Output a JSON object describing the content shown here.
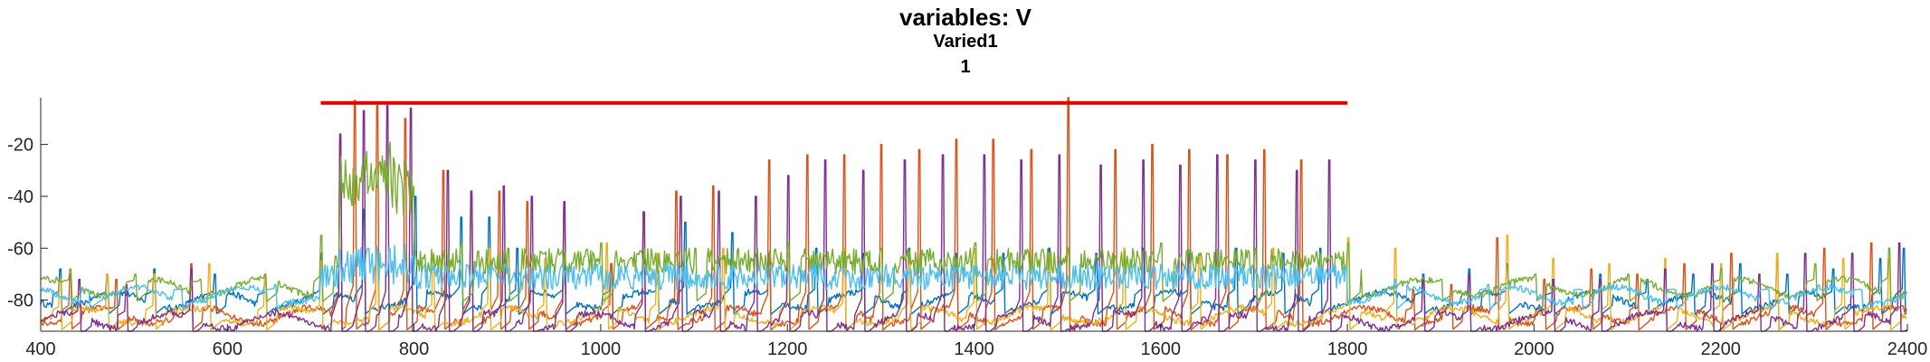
{
  "chart_data": {
    "type": "line",
    "title": "variables: V",
    "subtitle": "Varied1",
    "subtitle2": "1",
    "xlabel": "",
    "ylabel": "",
    "xlim": [
      400,
      2400
    ],
    "ylim": [
      -92,
      -2
    ],
    "xticks": [
      400,
      600,
      800,
      1000,
      1200,
      1400,
      1600,
      1800,
      2000,
      2200,
      2400
    ],
    "yticks": [
      -80,
      -60,
      -40,
      -20
    ],
    "grid": false,
    "legend": "none",
    "stimulus_bar": {
      "x": [
        700,
        1800
      ],
      "y": -4,
      "color": "#e00000"
    },
    "series": [
      {
        "color": "#0072bd",
        "baseline": -80,
        "spikes": [
          [
            420,
            -68
          ],
          [
            470,
            -70
          ],
          [
            520,
            -68
          ],
          [
            585,
            -70
          ],
          [
            640,
            -72
          ],
          [
            700,
            -62
          ],
          [
            745,
            -45
          ],
          [
            800,
            -40
          ],
          [
            850,
            -48
          ],
          [
            880,
            -48
          ],
          [
            910,
            -60
          ],
          [
            960,
            -62
          ],
          [
            1010,
            -66
          ],
          [
            1060,
            -64
          ],
          [
            1090,
            -50
          ],
          [
            1140,
            -54
          ],
          [
            1180,
            -62
          ],
          [
            1230,
            -60
          ],
          [
            1280,
            -62
          ],
          [
            1330,
            -60
          ],
          [
            1380,
            -62
          ],
          [
            1430,
            -62
          ],
          [
            1480,
            -60
          ],
          [
            1530,
            -62
          ],
          [
            1580,
            -60
          ],
          [
            1630,
            -62
          ],
          [
            1680,
            -60
          ],
          [
            1730,
            -62
          ],
          [
            1770,
            -60
          ],
          [
            1880,
            -70
          ],
          [
            1930,
            -68
          ],
          [
            1970,
            -66
          ],
          [
            2020,
            -72
          ],
          [
            2070,
            -70
          ],
          [
            2120,
            -72
          ],
          [
            2170,
            -70
          ],
          [
            2220,
            -66
          ],
          [
            2270,
            -70
          ],
          [
            2320,
            -68
          ],
          [
            2370,
            -64
          ],
          [
            2395,
            -60
          ]
        ]
      },
      {
        "color": "#d95319",
        "baseline": -86,
        "spikes": [
          [
            430,
            -70
          ],
          [
            480,
            -72
          ],
          [
            560,
            -66
          ],
          [
            720,
            -18
          ],
          [
            735,
            -3
          ],
          [
            760,
            -5
          ],
          [
            790,
            -10
          ],
          [
            830,
            -30
          ],
          [
            860,
            -40
          ],
          [
            890,
            -38
          ],
          [
            920,
            -42
          ],
          [
            960,
            -44
          ],
          [
            1010,
            -66
          ],
          [
            1045,
            -46
          ],
          [
            1080,
            -38
          ],
          [
            1120,
            -36
          ],
          [
            1180,
            -26
          ],
          [
            1220,
            -24
          ],
          [
            1260,
            -24
          ],
          [
            1300,
            -20
          ],
          [
            1340,
            -22
          ],
          [
            1380,
            -18
          ],
          [
            1420,
            -18
          ],
          [
            1460,
            -22
          ],
          [
            1500,
            -2
          ],
          [
            1550,
            -22
          ],
          [
            1590,
            -20
          ],
          [
            1630,
            -22
          ],
          [
            1670,
            -24
          ],
          [
            1710,
            -22
          ],
          [
            1750,
            -26
          ],
          [
            1870,
            -76
          ],
          [
            1910,
            -74
          ],
          [
            1960,
            -56
          ],
          [
            2010,
            -72
          ],
          [
            2060,
            -68
          ],
          [
            2110,
            -70
          ],
          [
            2160,
            -66
          ],
          [
            2210,
            -62
          ],
          [
            2260,
            -64
          ],
          [
            2310,
            -60
          ],
          [
            2360,
            -58
          ]
        ]
      },
      {
        "color": "#edb120",
        "baseline": -86,
        "spikes": [
          [
            420,
            -72
          ],
          [
            470,
            -70
          ],
          [
            520,
            -70
          ],
          [
            580,
            -66
          ],
          [
            640,
            -70
          ],
          [
            700,
            -65
          ],
          [
            760,
            -62
          ],
          [
            820,
            -62
          ],
          [
            880,
            -60
          ],
          [
            940,
            -64
          ],
          [
            1005,
            -58
          ],
          [
            1060,
            -62
          ],
          [
            1130,
            -60
          ],
          [
            1200,
            -62
          ],
          [
            1260,
            -60
          ],
          [
            1330,
            -62
          ],
          [
            1400,
            -60
          ],
          [
            1480,
            -62
          ],
          [
            1560,
            -60
          ],
          [
            1640,
            -62
          ],
          [
            1720,
            -60
          ],
          [
            1800,
            -56
          ],
          [
            1850,
            -60
          ],
          [
            1970,
            -55
          ],
          [
            2020,
            -64
          ],
          [
            2080,
            -66
          ],
          [
            2140,
            -64
          ],
          [
            2200,
            -66
          ],
          [
            2260,
            -62
          ],
          [
            2330,
            -64
          ],
          [
            2380,
            -64
          ]
        ]
      },
      {
        "color": "#7e2f8e",
        "baseline": -88,
        "spikes": [
          [
            440,
            -72
          ],
          [
            490,
            -74
          ],
          [
            560,
            -68
          ],
          [
            720,
            -16
          ],
          [
            745,
            -7
          ],
          [
            770,
            -5
          ],
          [
            795,
            -6
          ],
          [
            835,
            -30
          ],
          [
            860,
            -38
          ],
          [
            895,
            -36
          ],
          [
            925,
            -40
          ],
          [
            960,
            -42
          ],
          [
            1045,
            -46
          ],
          [
            1085,
            -40
          ],
          [
            1125,
            -38
          ],
          [
            1165,
            -40
          ],
          [
            1200,
            -32
          ],
          [
            1240,
            -26
          ],
          [
            1280,
            -30
          ],
          [
            1325,
            -26
          ],
          [
            1365,
            -24
          ],
          [
            1410,
            -24
          ],
          [
            1450,
            -26
          ],
          [
            1490,
            -24
          ],
          [
            1535,
            -28
          ],
          [
            1580,
            -26
          ],
          [
            1620,
            -28
          ],
          [
            1660,
            -24
          ],
          [
            1700,
            -26
          ],
          [
            1745,
            -30
          ],
          [
            1780,
            -26
          ],
          [
            1880,
            -72
          ],
          [
            1930,
            -70
          ],
          [
            2020,
            -72
          ],
          [
            2070,
            -72
          ],
          [
            2140,
            -68
          ],
          [
            2190,
            -66
          ],
          [
            2240,
            -70
          ],
          [
            2290,
            -62
          ],
          [
            2340,
            -62
          ],
          [
            2390,
            -58
          ]
        ]
      },
      {
        "color": "#77ac30",
        "baseline": -75,
        "band": [
          [
            700,
            1815,
            -70,
            -60
          ]
        ],
        "burst": [
          [
            720,
            800,
            -48,
            -24
          ],
          [
            745,
            775,
            -40,
            -18
          ]
        ],
        "spikes": [
          [
            430,
            -68
          ],
          [
            500,
            -70
          ],
          [
            570,
            -72
          ],
          [
            640,
            -70
          ],
          [
            700,
            -55
          ],
          [
            850,
            -58
          ],
          [
            900,
            -60
          ],
          [
            1000,
            -58
          ],
          [
            1100,
            -60
          ],
          [
            1200,
            -58
          ],
          [
            1300,
            -60
          ],
          [
            1400,
            -58
          ],
          [
            1500,
            -60
          ],
          [
            1600,
            -58
          ],
          [
            1700,
            -60
          ],
          [
            1800,
            -58
          ],
          [
            1900,
            -72
          ],
          [
            2000,
            -70
          ],
          [
            2100,
            -70
          ],
          [
            2200,
            -68
          ],
          [
            2300,
            -66
          ],
          [
            2380,
            -60
          ]
        ]
      },
      {
        "color": "#4dbeee",
        "baseline": -78,
        "noisy": [
          [
            700,
            1800,
            -76,
            -66
          ],
          [
            720,
            800,
            -74,
            -58
          ]
        ],
        "spikes": [
          [
            450,
            -76
          ],
          [
            550,
            -76
          ],
          [
            650,
            -74
          ],
          [
            1850,
            -72
          ],
          [
            1950,
            -74
          ],
          [
            2050,
            -76
          ],
          [
            2150,
            -76
          ],
          [
            2250,
            -76
          ],
          [
            2350,
            -76
          ]
        ]
      }
    ]
  }
}
